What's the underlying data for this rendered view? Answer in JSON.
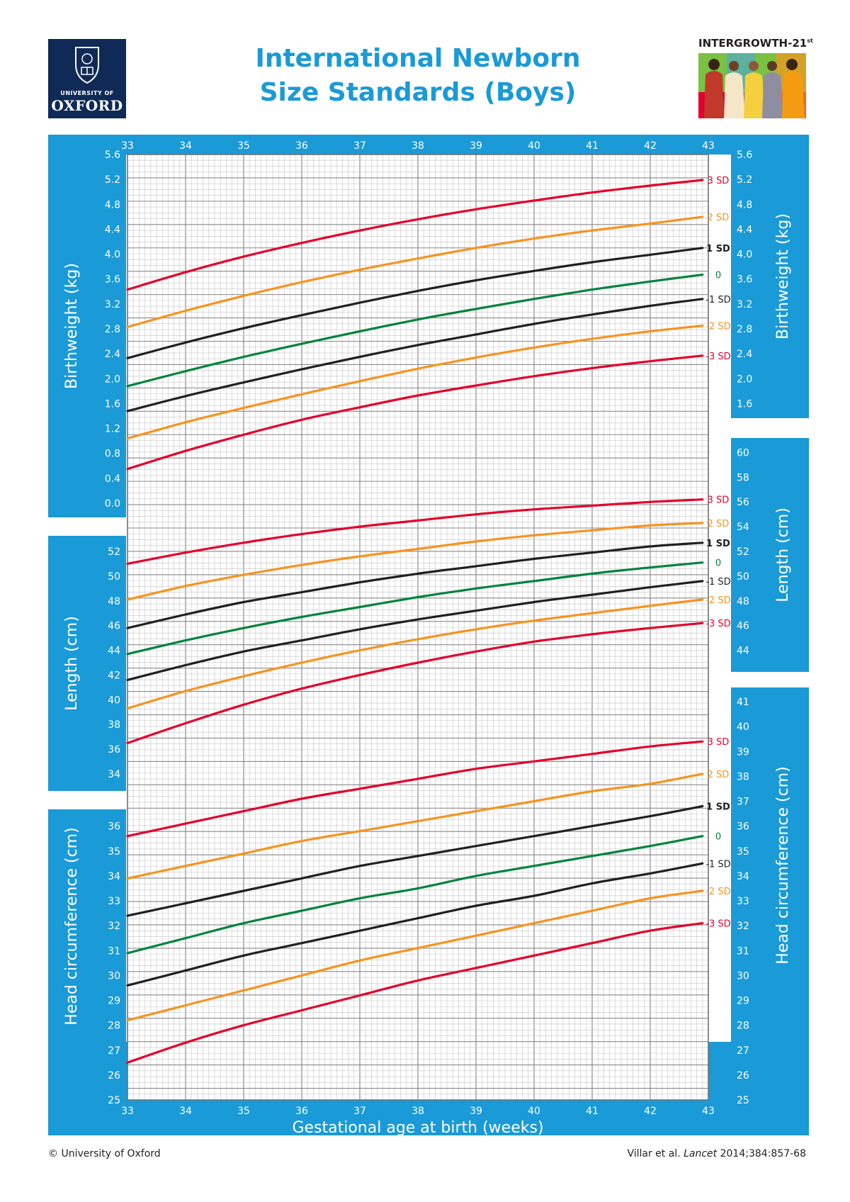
{
  "header": {
    "logo_top": "UNIVERSITY OF",
    "logo_bottom": "OXFORD",
    "title_line1": "International Newborn",
    "title_line2": "Size Standards (Boys)",
    "badge_main": "INTERGROWTH-21",
    "badge_sup": "st"
  },
  "footer": {
    "copyright": "© University of Oxford",
    "citation_prefix": "Villar et al. ",
    "citation_journal": "Lancet",
    "citation_suffix": " 2014;384:857-68"
  },
  "colors": {
    "panel_blue": "#1a9ad6",
    "title_blue": "#1a9ad6",
    "oxford_navy": "#0f2a56",
    "sd3": "#e4002b",
    "sd2": "#f7931e",
    "sd1": "#231f20",
    "median": "#00843d",
    "grid_minor": "#c4c4c4",
    "grid_major": "#8a8a8a"
  },
  "chart_data": {
    "type": "line",
    "xlabel": "Gestational age at birth (weeks)",
    "x": [
      33,
      34,
      35,
      36,
      37,
      38,
      39,
      40,
      41,
      42,
      43
    ],
    "xlim": [
      33,
      43
    ],
    "sd_labels": [
      "3 SD",
      "2 SD",
      "1 SD",
      "0",
      "-1 SD",
      "-2 SD",
      "-3 SD"
    ],
    "sd_colors": [
      "#e4002b",
      "#f7931e",
      "#231f20",
      "#00843d",
      "#231f20",
      "#f7931e",
      "#e4002b"
    ],
    "panels": [
      {
        "name": "birthweight",
        "ylabel": "Birthweight (kg)",
        "left_ticks": [
          "0.0",
          "0.4",
          "0.8",
          "1.2",
          "1.6",
          "2.0",
          "2.4",
          "2.8",
          "3.2",
          "3.6",
          "4.0",
          "4.4",
          "4.8",
          "5.2",
          "5.6"
        ],
        "right_ticks": [
          "1.6",
          "2.0",
          "2.4",
          "2.8",
          "3.2",
          "3.6",
          "4.0",
          "4.4",
          "4.8",
          "5.2",
          "5.6"
        ],
        "ylim": [
          0.0,
          5.6
        ],
        "series": [
          {
            "name": "3 SD",
            "x": [
              33,
              34,
              35,
              36,
              37,
              38,
              39,
              40,
              41,
              42,
              42.9
            ],
            "values": [
              3.43,
              3.71,
              3.96,
              4.18,
              4.38,
              4.56,
              4.72,
              4.86,
              4.99,
              5.1,
              5.19
            ]
          },
          {
            "name": "2 SD",
            "x": [
              33,
              34,
              35,
              36,
              37,
              38,
              39,
              40,
              41,
              42,
              42.9
            ],
            "values": [
              2.83,
              3.09,
              3.33,
              3.55,
              3.75,
              3.93,
              4.1,
              4.25,
              4.38,
              4.49,
              4.6
            ]
          },
          {
            "name": "1 SD",
            "x": [
              33,
              34,
              35,
              36,
              37,
              38,
              39,
              40,
              41,
              42,
              42.9
            ],
            "values": [
              2.33,
              2.58,
              2.81,
              3.02,
              3.22,
              3.41,
              3.58,
              3.73,
              3.87,
              3.99,
              4.1
            ]
          },
          {
            "name": "0",
            "x": [
              33,
              34,
              35,
              36,
              37,
              38,
              39,
              40,
              41,
              42,
              42.9
            ],
            "values": [
              1.88,
              2.12,
              2.35,
              2.56,
              2.76,
              2.95,
              3.12,
              3.28,
              3.43,
              3.56,
              3.67
            ]
          },
          {
            "name": "-1 SD",
            "x": [
              33,
              34,
              35,
              36,
              37,
              38,
              39,
              40,
              41,
              42,
              42.9
            ],
            "values": [
              1.48,
              1.72,
              1.94,
              2.15,
              2.35,
              2.54,
              2.71,
              2.88,
              3.03,
              3.17,
              3.28
            ]
          },
          {
            "name": "-2 SD",
            "x": [
              33,
              34,
              35,
              36,
              37,
              38,
              39,
              40,
              41,
              42,
              42.9
            ],
            "values": [
              1.04,
              1.3,
              1.53,
              1.75,
              1.96,
              2.16,
              2.34,
              2.5,
              2.64,
              2.76,
              2.85
            ]
          },
          {
            "name": "-3 SD",
            "x": [
              33,
              34,
              35,
              36,
              37,
              38,
              39,
              40,
              41,
              42,
              42.9
            ],
            "values": [
              0.55,
              0.84,
              1.1,
              1.34,
              1.54,
              1.73,
              1.89,
              2.04,
              2.17,
              2.28,
              2.37
            ]
          }
        ]
      },
      {
        "name": "length",
        "ylabel": "Length (cm)",
        "left_ticks": [
          "34",
          "36",
          "38",
          "40",
          "42",
          "44",
          "46",
          "48",
          "50",
          "52"
        ],
        "right_ticks": [
          "44",
          "46",
          "48",
          "50",
          "52",
          "54",
          "56",
          "58",
          "60"
        ],
        "ylim": [
          32,
          60
        ],
        "series": [
          {
            "name": "3 SD",
            "x": [
              33,
              34,
              35,
              36,
              37,
              38,
              39,
              40,
              41,
              42,
              42.9
            ],
            "values": [
              51.0,
              51.9,
              52.7,
              53.4,
              54.0,
              54.5,
              55.0,
              55.4,
              55.7,
              56.0,
              56.2
            ]
          },
          {
            "name": "2 SD",
            "x": [
              33,
              34,
              35,
              36,
              37,
              38,
              39,
              40,
              41,
              42,
              42.9
            ],
            "values": [
              48.1,
              49.2,
              50.1,
              50.9,
              51.6,
              52.2,
              52.8,
              53.3,
              53.7,
              54.1,
              54.3
            ]
          },
          {
            "name": "1 SD",
            "x": [
              33,
              34,
              35,
              36,
              37,
              38,
              39,
              40,
              41,
              42,
              42.9
            ],
            "values": [
              45.8,
              46.9,
              47.9,
              48.7,
              49.5,
              50.2,
              50.8,
              51.4,
              51.9,
              52.4,
              52.7
            ]
          },
          {
            "name": "0",
            "x": [
              33,
              34,
              35,
              36,
              37,
              38,
              39,
              40,
              41,
              42,
              42.9
            ],
            "values": [
              43.7,
              44.8,
              45.8,
              46.7,
              47.5,
              48.3,
              49.0,
              49.6,
              50.2,
              50.7,
              51.1
            ]
          },
          {
            "name": "-1 SD",
            "x": [
              33,
              34,
              35,
              36,
              37,
              38,
              39,
              40,
              41,
              42,
              42.9
            ],
            "values": [
              41.6,
              42.8,
              43.9,
              44.8,
              45.7,
              46.5,
              47.2,
              47.9,
              48.5,
              49.1,
              49.6
            ]
          },
          {
            "name": "-2 SD",
            "x": [
              33,
              34,
              35,
              36,
              37,
              38,
              39,
              40,
              41,
              42,
              42.9
            ],
            "values": [
              39.3,
              40.7,
              41.9,
              43.0,
              44.0,
              44.9,
              45.7,
              46.4,
              47.0,
              47.6,
              48.1
            ]
          },
          {
            "name": "-3 SD",
            "x": [
              33,
              34,
              35,
              36,
              37,
              38,
              39,
              40,
              41,
              42,
              42.9
            ],
            "values": [
              36.5,
              38.1,
              39.6,
              40.9,
              42.0,
              43.0,
              43.9,
              44.7,
              45.3,
              45.8,
              46.2
            ]
          }
        ]
      },
      {
        "name": "head_circumference",
        "ylabel": "Head circumference (cm)",
        "left_ticks": [
          "25",
          "26",
          "27",
          "28",
          "29",
          "30",
          "31",
          "32",
          "33",
          "34",
          "35",
          "36"
        ],
        "right_ticks": [
          "25",
          "26",
          "27",
          "28",
          "29",
          "30",
          "31",
          "32",
          "33",
          "34",
          "35",
          "36",
          "37",
          "38",
          "39",
          "40",
          "41"
        ],
        "ylim": [
          25,
          41
        ],
        "series": [
          {
            "name": "3 SD",
            "x": [
              33,
              34,
              35,
              36,
              37,
              38,
              39,
              40,
              41,
              42,
              42.9
            ],
            "values": [
              35.6,
              36.1,
              36.6,
              37.1,
              37.5,
              37.9,
              38.3,
              38.6,
              38.9,
              39.2,
              39.4
            ]
          },
          {
            "name": "2 SD",
            "x": [
              33,
              34,
              35,
              36,
              37,
              38,
              39,
              40,
              41,
              42,
              42.9
            ],
            "values": [
              33.9,
              34.4,
              34.9,
              35.4,
              35.8,
              36.2,
              36.6,
              37.0,
              37.4,
              37.7,
              38.1
            ]
          },
          {
            "name": "1 SD",
            "x": [
              33,
              34,
              35,
              36,
              37,
              38,
              39,
              40,
              41,
              42,
              42.9
            ],
            "values": [
              32.4,
              32.9,
              33.4,
              33.9,
              34.4,
              34.8,
              35.2,
              35.6,
              36.0,
              36.4,
              36.8
            ]
          },
          {
            "name": "0",
            "x": [
              33,
              34,
              35,
              36,
              37,
              38,
              39,
              40,
              41,
              42,
              42.9
            ],
            "values": [
              30.9,
              31.5,
              32.1,
              32.6,
              33.1,
              33.5,
              34.0,
              34.4,
              34.8,
              35.2,
              35.6
            ]
          },
          {
            "name": "-1 SD",
            "x": [
              33,
              34,
              35,
              36,
              37,
              38,
              39,
              40,
              41,
              42,
              42.9
            ],
            "values": [
              29.6,
              30.2,
              30.8,
              31.3,
              31.8,
              32.3,
              32.8,
              33.2,
              33.7,
              34.1,
              34.5
            ]
          },
          {
            "name": "-2 SD",
            "x": [
              33,
              34,
              35,
              36,
              37,
              38,
              39,
              40,
              41,
              42,
              42.9
            ],
            "values": [
              28.2,
              28.8,
              29.4,
              30.0,
              30.6,
              31.1,
              31.6,
              32.1,
              32.6,
              33.1,
              33.4
            ]
          },
          {
            "name": "-3 SD",
            "x": [
              33,
              34,
              35,
              36,
              37,
              38,
              39,
              40,
              41,
              42,
              42.9
            ],
            "values": [
              26.5,
              27.3,
              28.0,
              28.6,
              29.2,
              29.8,
              30.3,
              30.8,
              31.3,
              31.8,
              32.1
            ]
          }
        ]
      }
    ]
  }
}
